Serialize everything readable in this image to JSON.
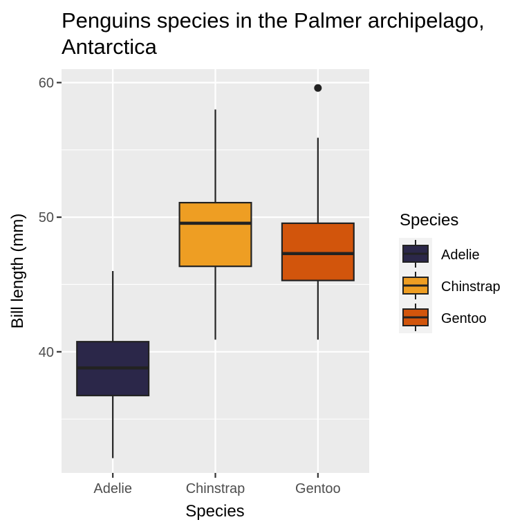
{
  "chart_data": {
    "type": "boxplot",
    "title_lines": [
      "Penguins species in the Palmer archipelago,",
      "Antarctica"
    ],
    "xlabel": "Species",
    "ylabel": "Bill length (mm)",
    "ylim": [
      31,
      61
    ],
    "y_ticks": [
      40,
      50,
      60
    ],
    "y_minor_gridlines": [
      35,
      45,
      55
    ],
    "grid": true,
    "legend": {
      "title": "Species",
      "placement": "right"
    },
    "categories": [
      "Adelie",
      "Chinstrap",
      "Gentoo"
    ],
    "series": [
      {
        "name": "Adelie",
        "color": "#2b2749",
        "whisker_low": 32.1,
        "q1": 36.75,
        "median": 38.8,
        "q3": 40.75,
        "whisker_high": 46.0,
        "outliers": []
      },
      {
        "name": "Chinstrap",
        "color": "#ee9e23",
        "whisker_low": 40.9,
        "q1": 46.35,
        "median": 49.55,
        "q3": 51.08,
        "whisker_high": 58.0,
        "outliers": []
      },
      {
        "name": "Gentoo",
        "color": "#d2550c",
        "whisker_low": 40.9,
        "q1": 45.3,
        "median": 47.3,
        "q3": 49.55,
        "whisker_high": 55.9,
        "outliers": [
          59.6
        ]
      }
    ]
  }
}
